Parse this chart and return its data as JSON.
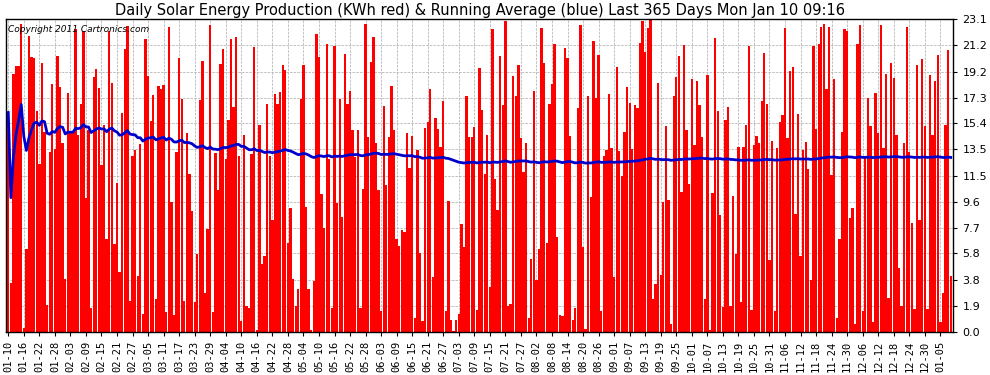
{
  "title": "Daily Solar Energy Production (KWh red) & Running Average (blue) Last 365 Days Mon Jan 10 09:16",
  "copyright_text": "Copyright 2011 Cartronics.com",
  "yticks": [
    0.0,
    1.9,
    3.8,
    5.8,
    7.7,
    9.6,
    11.5,
    13.5,
    15.4,
    17.3,
    19.2,
    21.2,
    23.1
  ],
  "ymax": 23.1,
  "bar_color": "#ff0000",
  "avg_color": "#0000cc",
  "bg_color": "#ffffff",
  "grid_color": "#aaaaaa",
  "title_fontsize": 10.5,
  "tick_fontsize": 8,
  "avg_linewidth": 2.0
}
